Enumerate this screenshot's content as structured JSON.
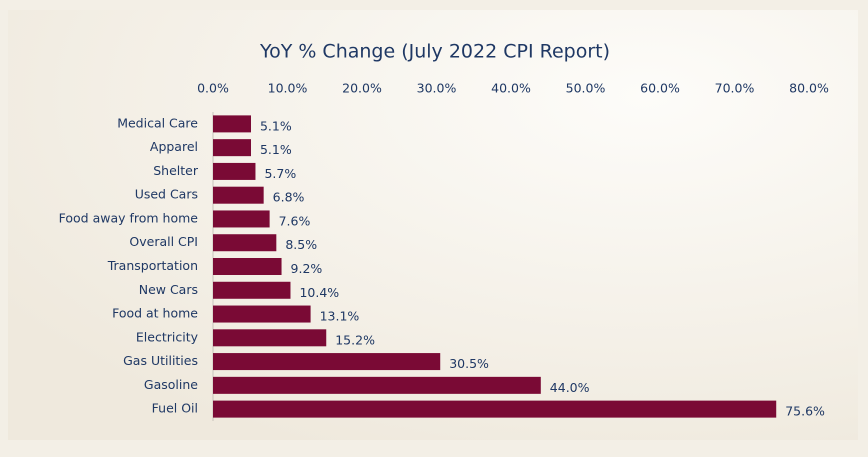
{
  "chart_data": {
    "type": "bar",
    "orientation": "horizontal",
    "title": "YoY % Change (July 2022 CPI Report)",
    "categories": [
      "Medical Care",
      "Apparel",
      "Shelter",
      "Used Cars",
      "Food away from home",
      "Overall CPI",
      "Transportation",
      "New Cars",
      "Food at home",
      "Electricity",
      "Gas Utilities",
      "Gasoline",
      "Fuel Oil"
    ],
    "values": [
      5.1,
      5.1,
      5.7,
      6.8,
      7.6,
      8.5,
      9.2,
      10.4,
      13.1,
      15.2,
      30.5,
      44.0,
      75.6
    ],
    "value_labels": [
      "5.1%",
      "5.1%",
      "5.7%",
      "6.8%",
      "7.6%",
      "8.5%",
      "9.2%",
      "10.4%",
      "13.1%",
      "15.2%",
      "30.5%",
      "44.0%",
      "75.6%"
    ],
    "color": "#7a0a35",
    "xlim": [
      0,
      80
    ],
    "xticks": [
      {
        "value": 0,
        "label": "0.0%"
      },
      {
        "value": 10,
        "label": "10.0%"
      },
      {
        "value": 20,
        "label": "20.0%"
      },
      {
        "value": 30,
        "label": "30.0%"
      },
      {
        "value": 40,
        "label": "40.0%"
      },
      {
        "value": 50,
        "label": "50.0%"
      },
      {
        "value": 60,
        "label": "60.0%"
      },
      {
        "value": 70,
        "label": "70.0%"
      },
      {
        "value": 80,
        "label": "80.0%"
      }
    ],
    "grid": false
  }
}
